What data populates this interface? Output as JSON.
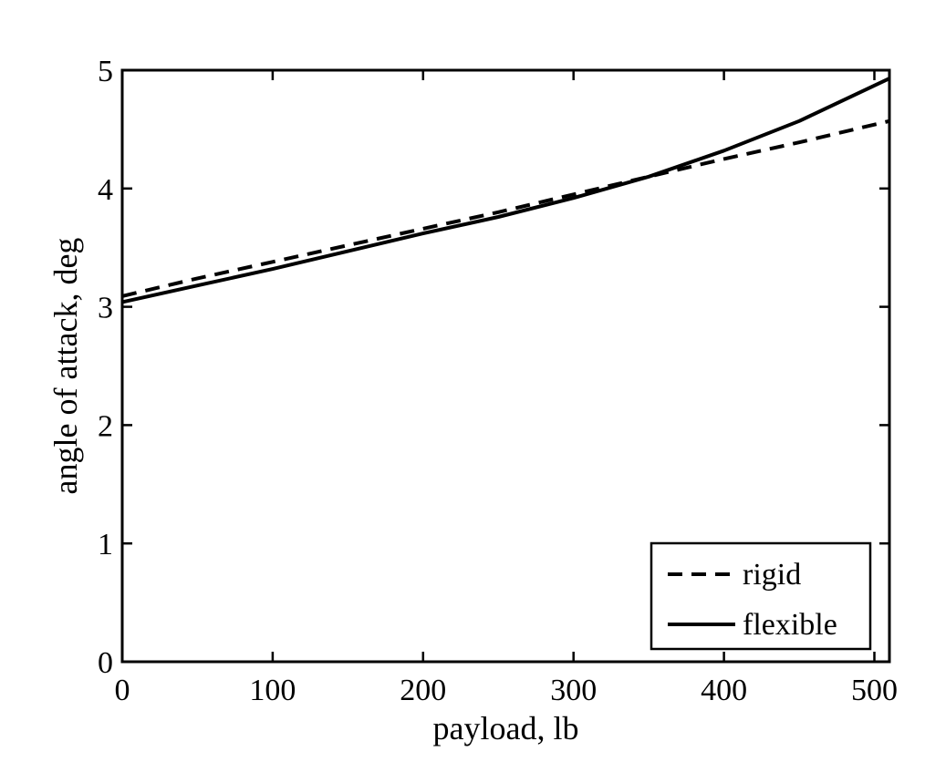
{
  "chart_data": {
    "type": "line",
    "title": "",
    "xlabel": "payload, lb",
    "ylabel": "angle of attack, deg",
    "xlim": [
      0,
      510
    ],
    "ylim": [
      0,
      5
    ],
    "xticks": [
      0,
      100,
      200,
      300,
      400,
      500
    ],
    "yticks": [
      0,
      1,
      2,
      3,
      4,
      5
    ],
    "xtick_labels": [
      "0",
      "100",
      "200",
      "300",
      "400",
      "500"
    ],
    "ytick_labels": [
      "0",
      "1",
      "2",
      "3",
      "4",
      "5"
    ],
    "grid": false,
    "legend": "bottom-right",
    "series": [
      {
        "name": "rigid",
        "style": "dashed",
        "color": "#000000",
        "x": [
          0,
          50,
          100,
          150,
          200,
          250,
          300,
          350,
          400,
          450,
          510
        ],
        "y": [
          3.09,
          3.24,
          3.38,
          3.52,
          3.66,
          3.8,
          3.95,
          4.1,
          4.25,
          4.39,
          4.57
        ]
      },
      {
        "name": "flexible",
        "style": "solid",
        "color": "#000000",
        "x": [
          0,
          50,
          100,
          150,
          200,
          250,
          300,
          350,
          400,
          450,
          510
        ],
        "y": [
          3.04,
          3.18,
          3.32,
          3.47,
          3.62,
          3.76,
          3.92,
          4.1,
          4.32,
          4.57,
          4.93
        ]
      }
    ]
  }
}
